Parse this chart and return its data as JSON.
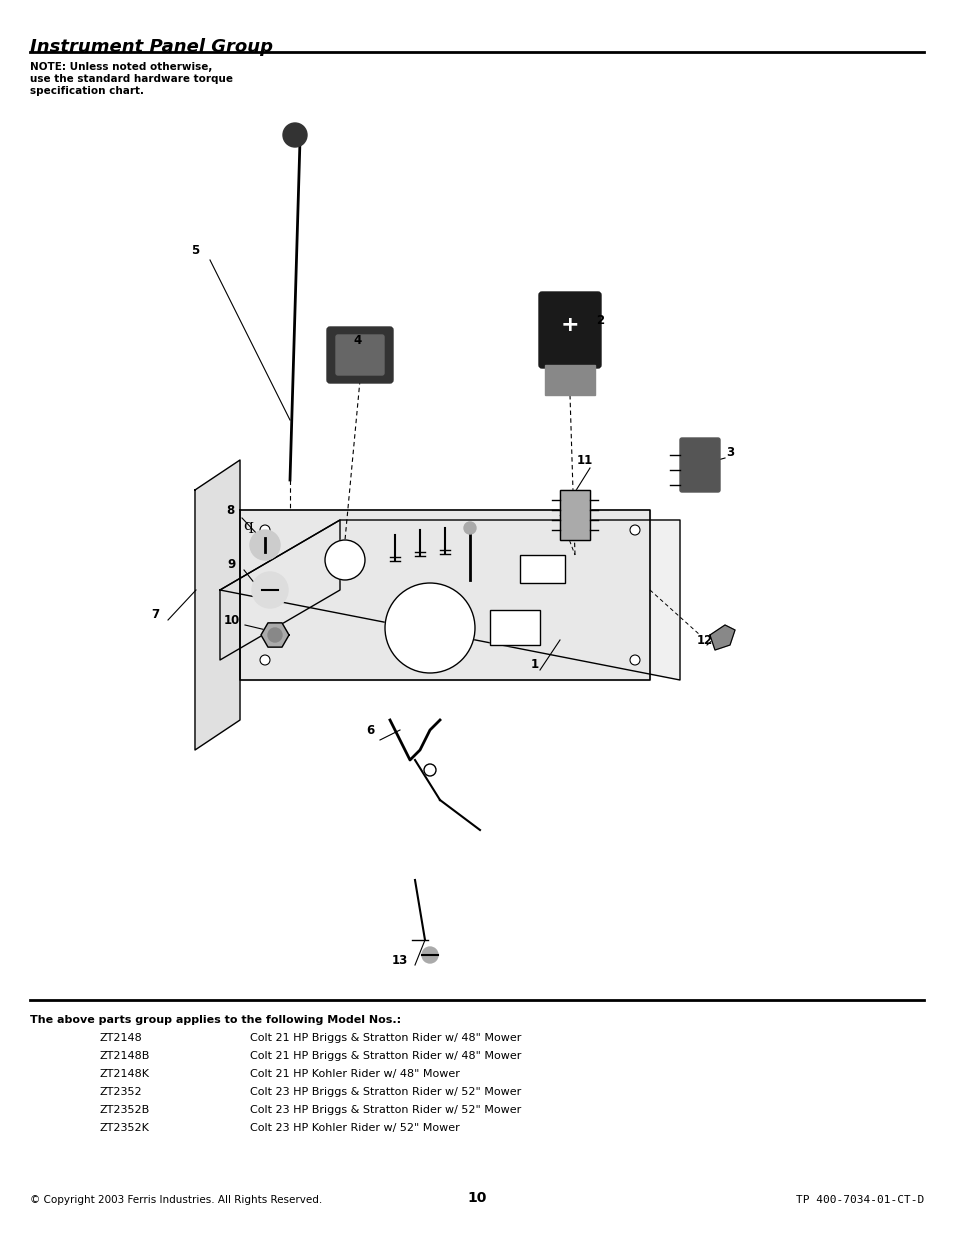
{
  "title": "Instrument Panel Group",
  "note_line1": "NOTE: Unless noted otherwise,",
  "note_line2": "use the standard hardware torque",
  "note_line3": "specification chart.",
  "bottom_header": "The above parts group applies to the following Model Nos.:",
  "models": [
    [
      "ZT2148",
      "Colt 21 HP Briggs & Stratton Rider w/ 48\" Mower"
    ],
    [
      "ZT2148B",
      "Colt 21 HP Briggs & Stratton Rider w/ 48\" Mower"
    ],
    [
      "ZT2148K",
      "Colt 21 HP Kohler Rider w/ 48\" Mower"
    ],
    [
      "ZT2352",
      "Colt 23 HP Briggs & Stratton Rider w/ 52\" Mower"
    ],
    [
      "ZT2352B",
      "Colt 23 HP Briggs & Stratton Rider w/ 52\" Mower"
    ],
    [
      "ZT2352K",
      "Colt 23 HP Kohler Rider w/ 52\" Mower"
    ]
  ],
  "footer_left": "© Copyright 2003 Ferris Industries. All Rights Reserved.",
  "footer_center": "10",
  "footer_right": "TP 400-7034-01-CT-D",
  "part_labels": [
    "1",
    "2",
    "3",
    "4",
    "5",
    "6",
    "7",
    "8",
    "9",
    "10",
    "11",
    "12",
    "13"
  ],
  "bg_color": "#ffffff",
  "text_color": "#000000"
}
